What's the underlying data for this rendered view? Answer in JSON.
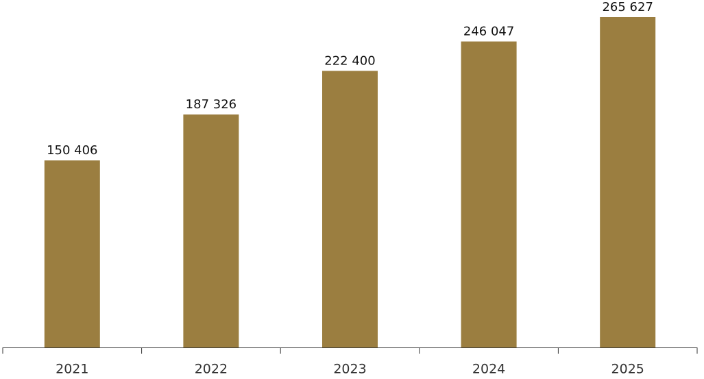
{
  "chart_data": {
    "type": "bar",
    "categories": [
      "2021",
      "2022",
      "2023",
      "2024",
      "2025"
    ],
    "values": [
      150406,
      187326,
      222400,
      246047,
      265627
    ],
    "value_labels": [
      "150 406",
      "187 326",
      "222 400",
      "246 047",
      "265 627"
    ],
    "color": "#9b7e40"
  }
}
